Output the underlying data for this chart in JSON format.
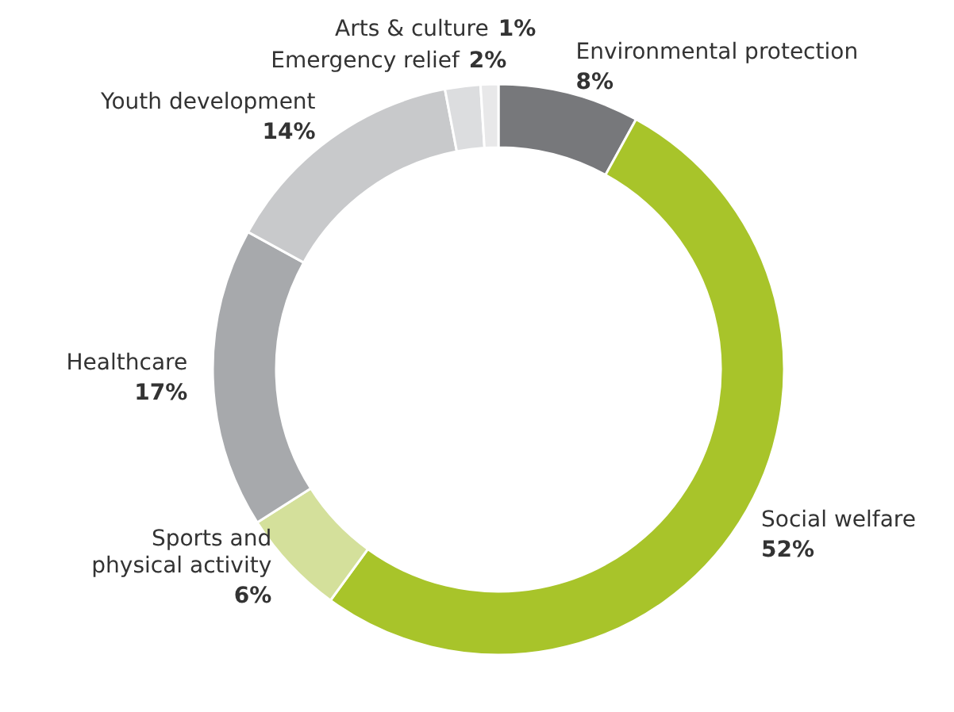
{
  "chart_data": {
    "type": "donut",
    "categories": [
      "Environmental protection",
      "Social welfare",
      "Sports and physical activity",
      "Healthcare",
      "Youth development",
      "Emergency relief",
      "Arts & culture"
    ],
    "values": [
      8,
      52,
      6,
      17,
      14,
      2,
      1
    ],
    "value_labels": [
      "8%",
      "52%",
      "6%",
      "17%",
      "14%",
      "2%",
      "1%"
    ],
    "colors": [
      "#77787b",
      "#a8c42a",
      "#d4e09b",
      "#a7a9ac",
      "#c8c9cb",
      "#dcdddf",
      "#e8e8e9"
    ]
  }
}
